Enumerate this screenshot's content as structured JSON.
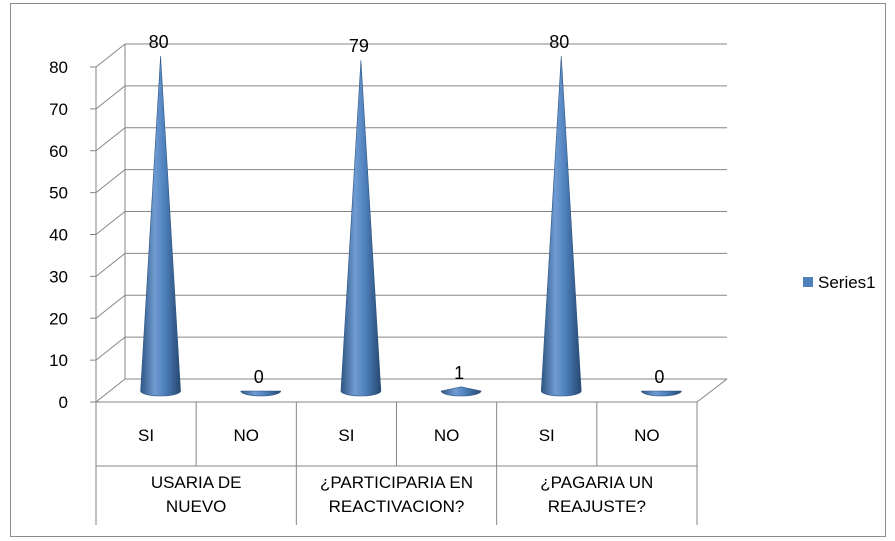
{
  "chart_data": {
    "type": "bar",
    "bar_shape": "cone",
    "three_d": true,
    "categories": [
      "SI",
      "NO",
      "SI",
      "NO",
      "SI",
      "NO"
    ],
    "groups": [
      "USARIA DE NUEVO",
      "¿PARTICIPARIA EN REACTIVACION?",
      "¿PAGARIA UN REAJUSTE?"
    ],
    "group_lines": [
      [
        "USARIA DE",
        "NUEVO"
      ],
      [
        "¿PARTICIPARIA EN",
        "REACTIVACION?"
      ],
      [
        "¿PAGARIA UN",
        "REAJUSTE?"
      ]
    ],
    "series": [
      {
        "name": "Series1",
        "values": [
          80,
          0,
          79,
          1,
          80,
          0
        ],
        "color": "#4f81bd"
      }
    ],
    "data_labels": [
      "80",
      "0",
      "79",
      "1",
      "80",
      "0"
    ],
    "yticks": [
      "0",
      "10",
      "20",
      "30",
      "40",
      "50",
      "60",
      "70",
      "80"
    ],
    "ylim": [
      0,
      80
    ],
    "grid": true,
    "legend": {
      "position": "right",
      "entries": [
        "Series1"
      ]
    },
    "title": "",
    "xlabel": "",
    "ylabel": ""
  }
}
